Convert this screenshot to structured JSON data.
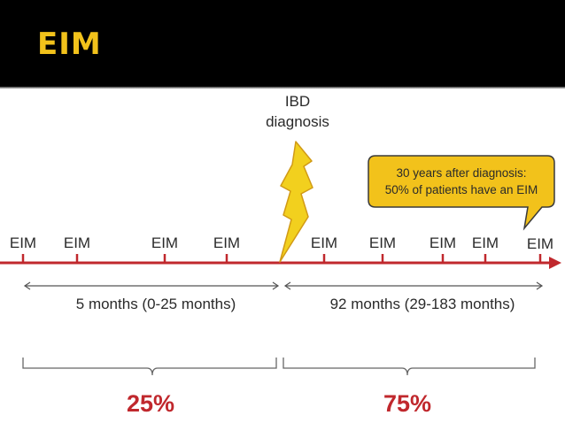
{
  "slide": {
    "title": "EIM"
  },
  "timeline": {
    "marker_label": "EIM",
    "event": {
      "line1": "IBD",
      "line2": "diagnosis"
    },
    "callout": {
      "line1": "30 years after diagnosis:",
      "line2": "50% of patients have an EIM"
    },
    "before": {
      "span_label": "5 months (0-25 months)",
      "percent": "25%"
    },
    "after": {
      "span_label": "92 months (29-183 months)",
      "percent": "75%"
    }
  },
  "colors": {
    "title": "#f2c21b",
    "timeline": "#c0282d",
    "lightning": "#f2d01e",
    "callout_fill": "#f2c21b",
    "percent": "#c0282d"
  }
}
